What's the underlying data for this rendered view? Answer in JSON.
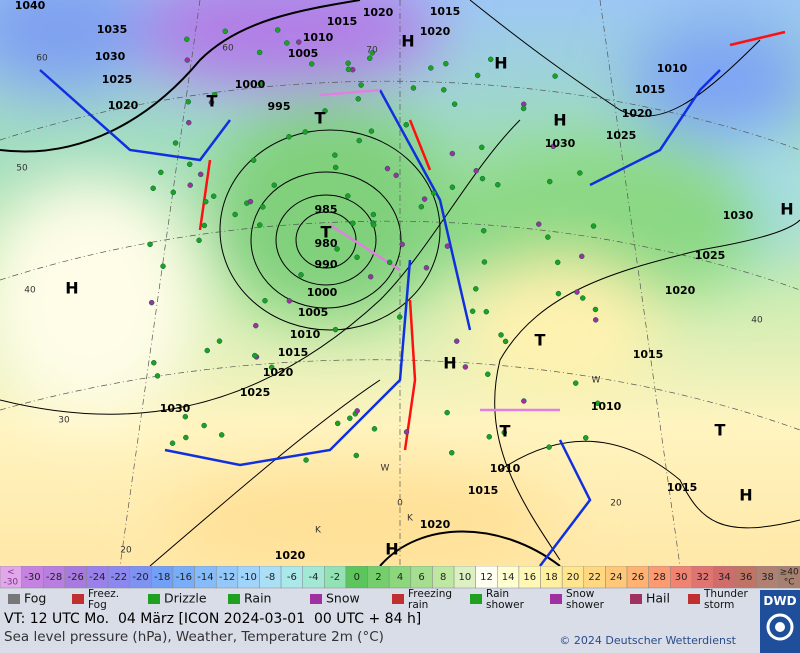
{
  "map_labels": {
    "isobars": [
      "1040",
      "1035",
      "1030",
      "1025",
      "1020",
      "1015",
      "1020",
      "1015",
      "1020",
      "1010",
      "1005",
      "1000",
      "995",
      "985",
      "980",
      "990",
      "1000",
      "1005",
      "1010",
      "1015",
      "1020",
      "1025",
      "1030",
      "1010",
      "1015",
      "1020",
      "1025",
      "1030",
      "1030",
      "1025",
      "1020",
      "1015",
      "1010",
      "1010",
      "1015",
      "1015",
      "1020",
      "1020"
    ],
    "centers": [
      "H",
      "H",
      "H",
      "H",
      "H",
      "H",
      "H",
      "H",
      "T",
      "T",
      "T",
      "T",
      "T",
      "T"
    ],
    "grid_labels": [
      "60",
      "50",
      "40",
      "30",
      "20",
      "0",
      "20",
      "40",
      "70",
      "60",
      "K",
      "K",
      "W",
      "W"
    ]
  },
  "colorbar": {
    "below": [
      "<",
      "-30"
    ],
    "steps": [
      {
        "label": -30,
        "color": "#c682e0"
      },
      {
        "label": -28,
        "color": "#b87ee0"
      },
      {
        "label": -26,
        "color": "#a87ae0"
      },
      {
        "label": -24,
        "color": "#9a80ea"
      },
      {
        "label": -22,
        "color": "#8c88f0"
      },
      {
        "label": -20,
        "color": "#7e92f2"
      },
      {
        "label": -18,
        "color": "#72a0f6"
      },
      {
        "label": -16,
        "color": "#78aef8"
      },
      {
        "label": -14,
        "color": "#86bcfa"
      },
      {
        "label": -12,
        "color": "#94c8fa"
      },
      {
        "label": -10,
        "color": "#a0d4fa"
      },
      {
        "label": -8,
        "color": "#aadff6"
      },
      {
        "label": -6,
        "color": "#aae8ea"
      },
      {
        "label": -4,
        "color": "#a2e8d4"
      },
      {
        "label": -2,
        "color": "#92e2b6"
      },
      {
        "label": 0,
        "color": "#5cc65c"
      },
      {
        "label": 2,
        "color": "#74ce6c"
      },
      {
        "label": 4,
        "color": "#8cd67c"
      },
      {
        "label": 6,
        "color": "#a4de8e"
      },
      {
        "label": 8,
        "color": "#bee8a2"
      },
      {
        "label": 10,
        "color": "#dcf0c2"
      },
      {
        "label": 12,
        "color": "#fffff2"
      },
      {
        "label": 14,
        "color": "#ffffd2"
      },
      {
        "label": 16,
        "color": "#fff8b4"
      },
      {
        "label": 18,
        "color": "#fff0a0"
      },
      {
        "label": 20,
        "color": "#ffe68e"
      },
      {
        "label": 22,
        "color": "#ffd880"
      },
      {
        "label": 24,
        "color": "#ffc878"
      },
      {
        "label": 26,
        "color": "#ffb272"
      },
      {
        "label": 28,
        "color": "#fc9a72"
      },
      {
        "label": 30,
        "color": "#f08472"
      },
      {
        "label": 32,
        "color": "#e07470"
      },
      {
        "label": 34,
        "color": "#d06c6a"
      },
      {
        "label": 36,
        "color": "#c07466"
      },
      {
        "label": 38,
        "color": "#b08072"
      }
    ],
    "above": [
      "≥40",
      "°C"
    ]
  },
  "legend": [
    [
      "Fog"
    ],
    [
      "Freez.",
      "Fog"
    ],
    [
      "Drizzle"
    ],
    [
      "Rain"
    ],
    [
      "Snow"
    ],
    [
      "Freezing",
      "rain"
    ],
    [
      "Rain",
      "shower"
    ],
    [
      "Snow",
      "shower"
    ],
    [
      "Hail"
    ],
    [
      "Thunder",
      "storm"
    ]
  ],
  "footer": {
    "valid_time": "VT: 12 UTC Mo.  04 März [ICON 2024-03-01  00 UTC + 84 h]",
    "description": "Sea level pressure (hPa), Weather, Temperature 2m (°C)",
    "copyright": "© 2024 Deutscher Wetterdienst",
    "logo": "DWD"
  }
}
